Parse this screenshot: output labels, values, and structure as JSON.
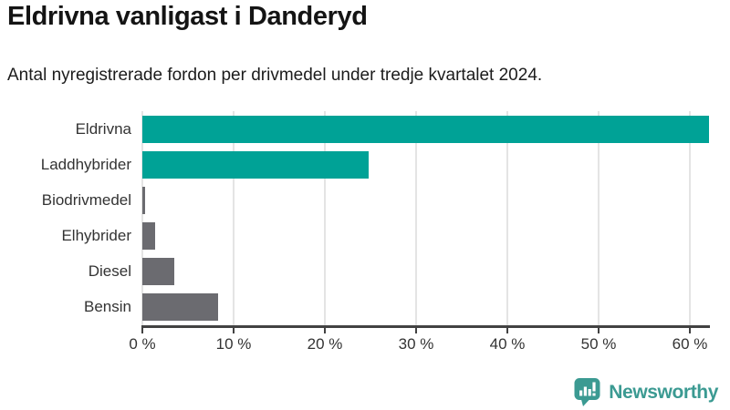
{
  "header": {
    "title": "Eldrivna vanligast i Danderyd",
    "subtitle": "Antal nyregistrerade fordon per drivmedel under tredje kvartalet 2024."
  },
  "chart_data": {
    "type": "bar",
    "orientation": "horizontal",
    "title": "Eldrivna vanligast i Danderyd",
    "xlabel": "",
    "ylabel": "",
    "categories": [
      "Eldrivna",
      "Laddhybrider",
      "Biodrivmedel",
      "Elhybrider",
      "Diesel",
      "Bensin"
    ],
    "values": [
      62.1,
      24.8,
      0.3,
      1.4,
      3.5,
      8.3
    ],
    "unit": "%",
    "xlim": [
      0,
      62.1
    ],
    "x_ticks": [
      0,
      10,
      20,
      30,
      40,
      50,
      60
    ],
    "x_tick_labels": [
      "0 %",
      "10 %",
      "20 %",
      "30 %",
      "40 %",
      "50 %",
      "60 %"
    ],
    "bar_colors": [
      "#00a296",
      "#00a296",
      "#6b6b70",
      "#6b6b70",
      "#6b6b70",
      "#6b6b70"
    ],
    "highlight_color": "#00a296",
    "default_color": "#6b6b70",
    "grid": true,
    "legend_position": "none"
  },
  "footer": {
    "brand": "Newsworthy",
    "brand_color": "#3b9a92"
  }
}
